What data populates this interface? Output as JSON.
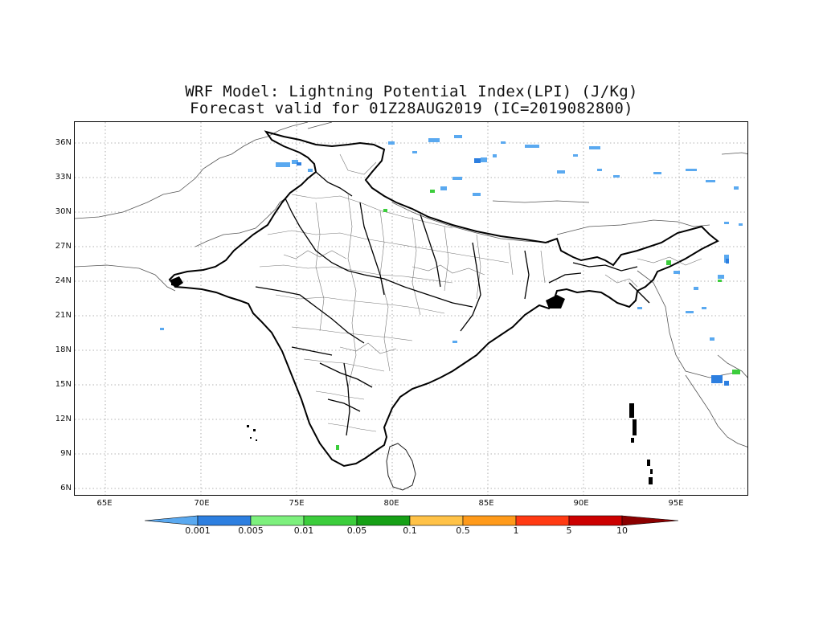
{
  "title": {
    "line1": "WRF Model: Lightning Potential Index(LPI) (J/Kg)",
    "line2": "Forecast valid for 01Z28AUG2019 (IC=2019082800)"
  },
  "axes": {
    "latitude_ticks": [
      "36N",
      "33N",
      "30N",
      "27N",
      "24N",
      "21N",
      "18N",
      "15N",
      "12N",
      "9N",
      "6N"
    ],
    "longitude_ticks": [
      "65E",
      "70E",
      "75E",
      "80E",
      "85E",
      "90E",
      "95E"
    ]
  },
  "colorbar": {
    "labels": [
      "0.001",
      "0.005",
      "0.01",
      "0.05",
      "0.1",
      "0.5",
      "1",
      "5",
      "10"
    ],
    "colors": [
      "#5aa9f0",
      "#2d7fe0",
      "#7df07d",
      "#3ccd3c",
      "#16a016",
      "#ffc247",
      "#ff9a1a",
      "#ff3a12",
      "#cc0000",
      "#8b0000"
    ]
  },
  "chart_data": {
    "type": "heatmap",
    "variable": "Lightning Potential Index (LPI)",
    "units": "J/Kg",
    "valid_time": "01Z28AUG2019",
    "initial_condition": "2019082800",
    "lon_range": [
      63,
      98.5
    ],
    "lat_range": [
      5.5,
      37.5
    ],
    "grid": true,
    "levels": [
      0.001,
      0.005,
      0.01,
      0.05,
      0.1,
      0.5,
      1,
      5,
      10
    ]
  }
}
